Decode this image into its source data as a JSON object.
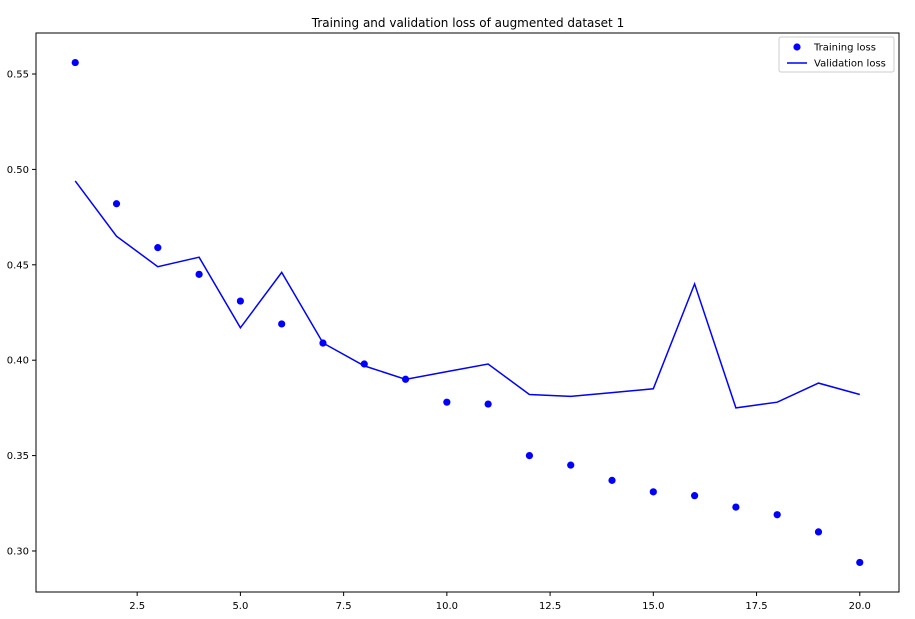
{
  "chart_data": {
    "type": "line",
    "title": "Training and validation loss of augmented dataset 1",
    "xlabel": "",
    "ylabel": "",
    "xlim": [
      0.05,
      20.95
    ],
    "ylim": [
      0.2785,
      0.5715
    ],
    "x_ticks": [
      2.5,
      5.0,
      7.5,
      10.0,
      12.5,
      15.0,
      17.5,
      20.0
    ],
    "x_tick_labels": [
      "2.5",
      "5.0",
      "7.5",
      "10.0",
      "12.5",
      "15.0",
      "17.5",
      "20.0"
    ],
    "y_ticks": [
      0.3,
      0.35,
      0.4,
      0.45,
      0.5,
      0.55
    ],
    "y_tick_labels": [
      "0.30",
      "0.35",
      "0.40",
      "0.45",
      "0.50",
      "0.55"
    ],
    "grid": false,
    "legend_position": "top-right",
    "series": [
      {
        "name": "Training loss",
        "style": "markers",
        "color": "#0000ff",
        "x": [
          1,
          2,
          3,
          4,
          5,
          6,
          7,
          8,
          9,
          10,
          11,
          12,
          13,
          14,
          15,
          16,
          17,
          18,
          19,
          20
        ],
        "values": [
          0.556,
          0.482,
          0.459,
          0.445,
          0.431,
          0.419,
          0.409,
          0.398,
          0.39,
          0.378,
          0.377,
          0.35,
          0.345,
          0.337,
          0.331,
          0.329,
          0.323,
          0.319,
          0.31,
          0.294
        ]
      },
      {
        "name": "Validation loss",
        "style": "line",
        "color": "#0000ff",
        "x": [
          1,
          2,
          3,
          4,
          5,
          6,
          7,
          8,
          9,
          10,
          11,
          12,
          13,
          14,
          15,
          16,
          17,
          18,
          19,
          20
        ],
        "values": [
          0.494,
          0.465,
          0.449,
          0.454,
          0.417,
          0.446,
          0.409,
          0.397,
          0.39,
          0.394,
          0.398,
          0.382,
          0.381,
          0.383,
          0.385,
          0.44,
          0.375,
          0.378,
          0.388,
          0.382
        ]
      }
    ]
  }
}
